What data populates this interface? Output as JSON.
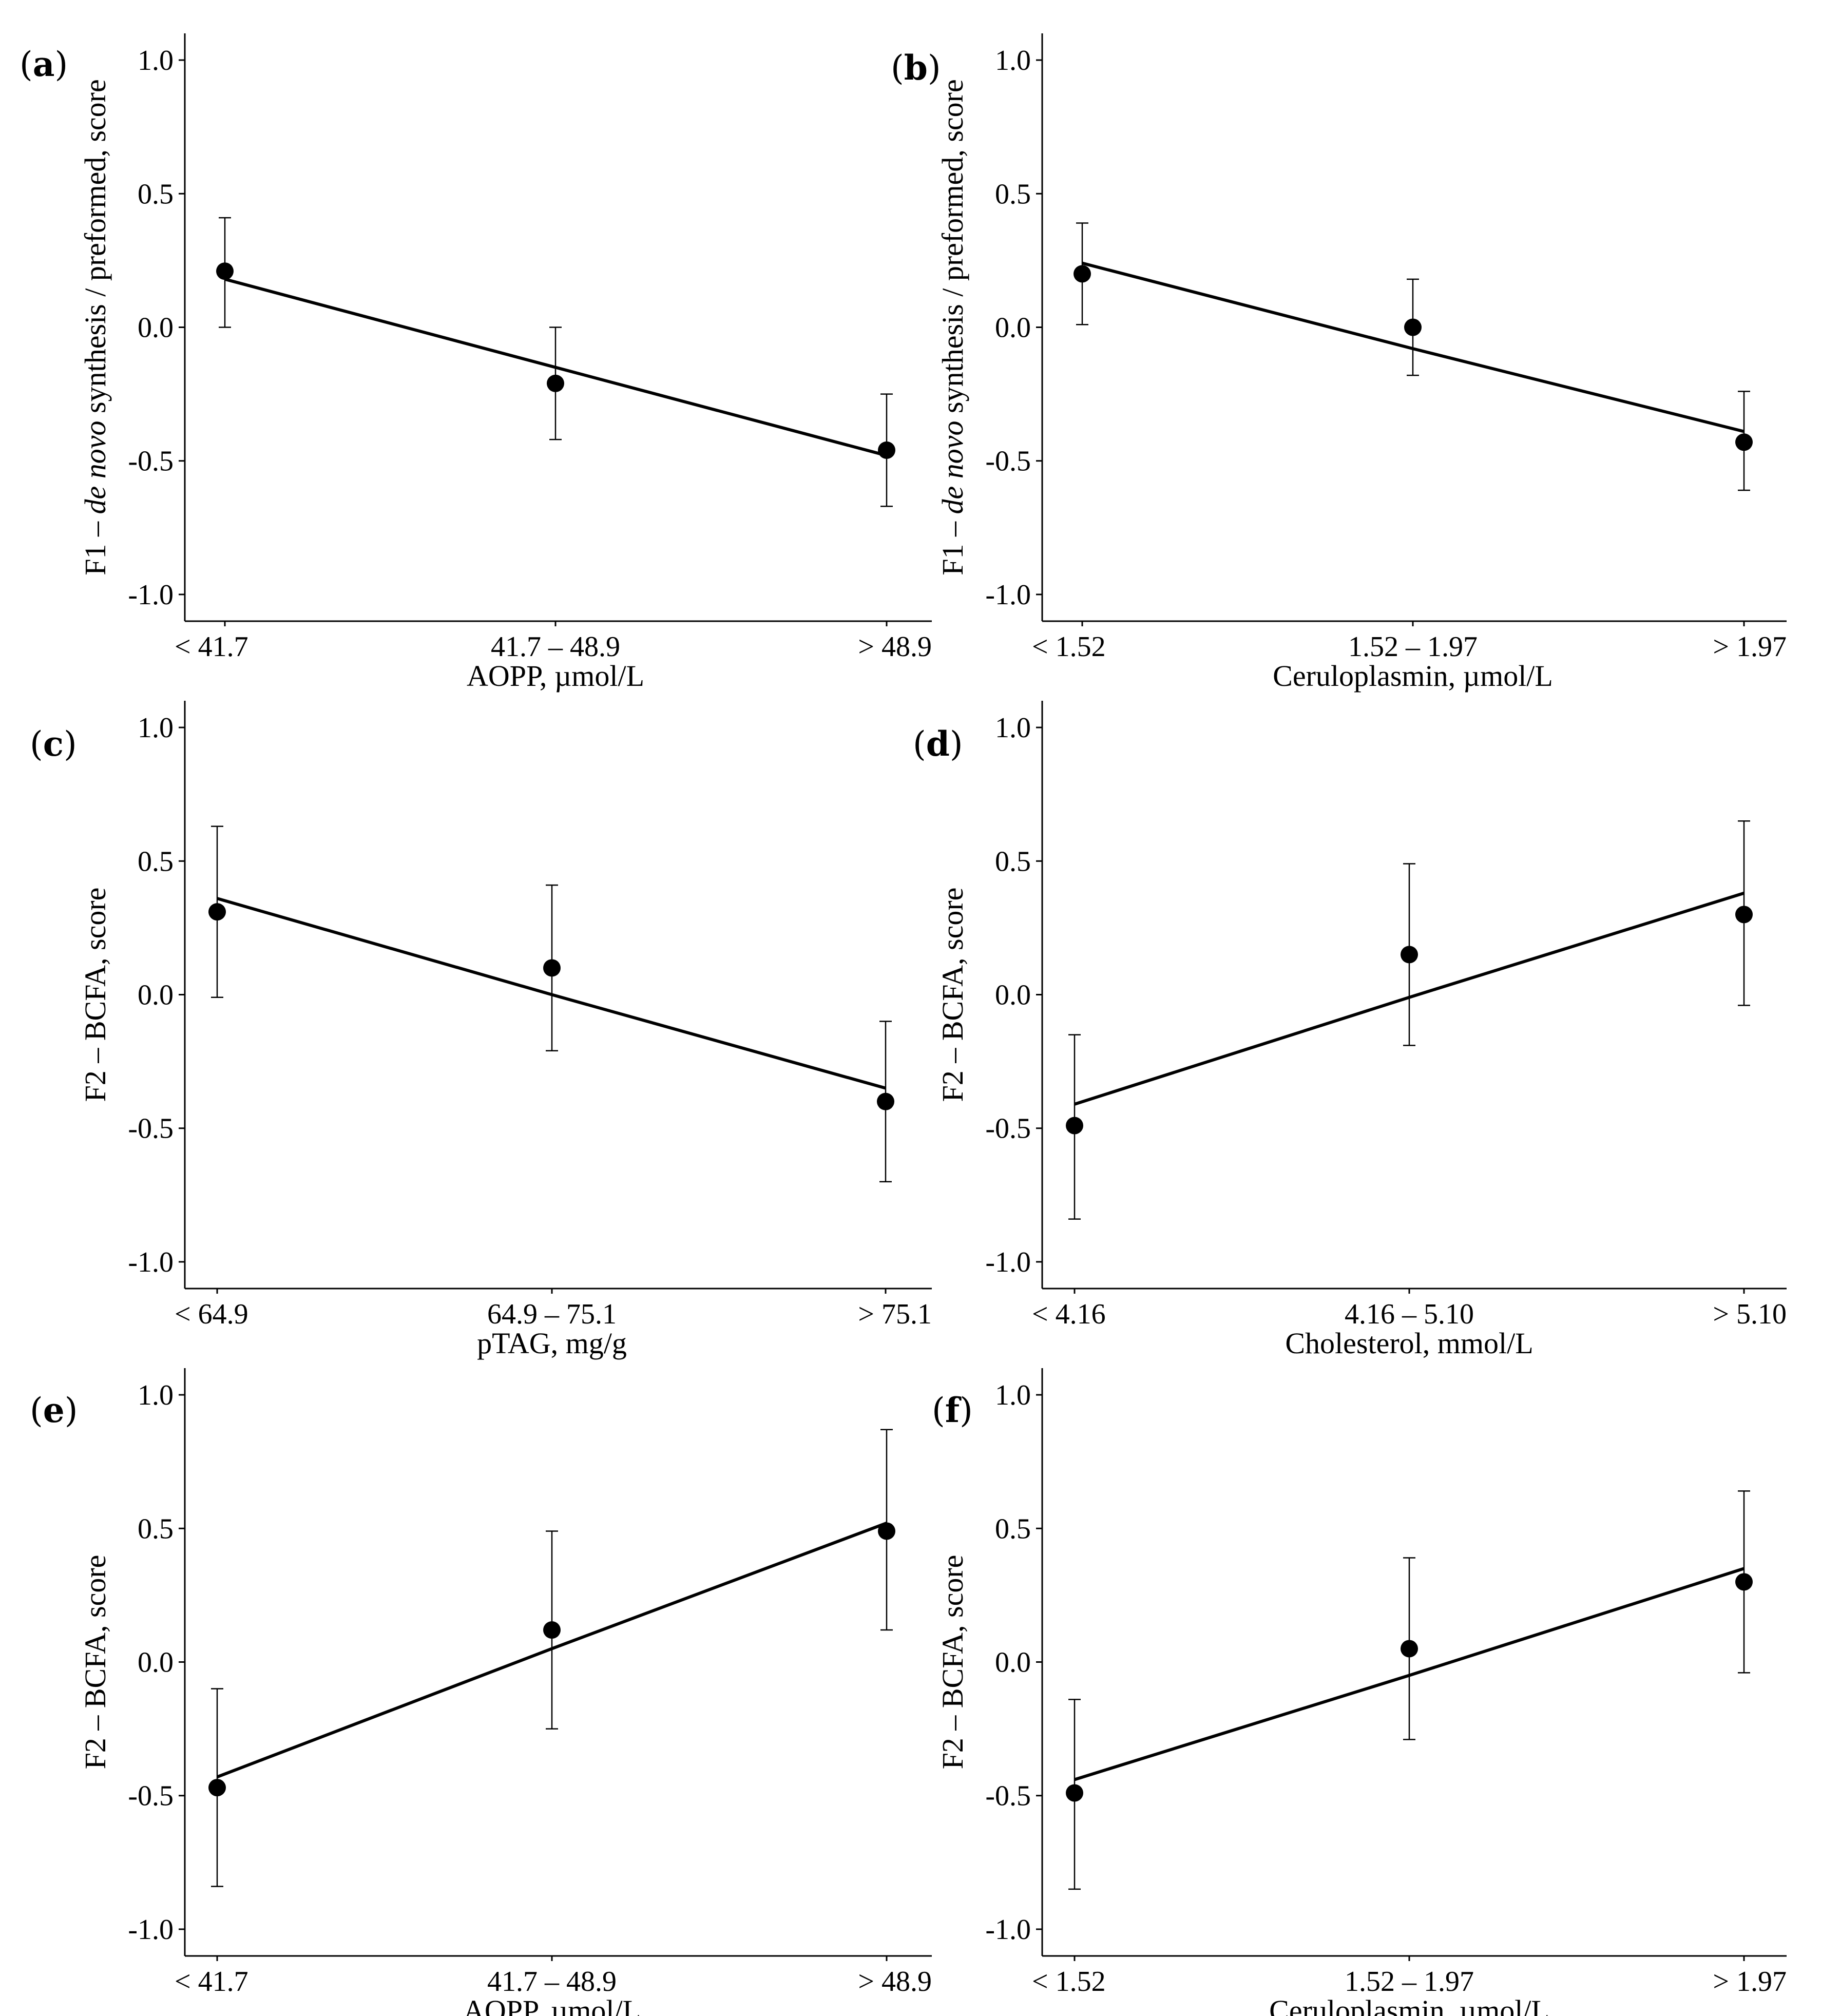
{
  "chart_data": [
    {
      "type": "scatter",
      "panel": "a",
      "panel_label_prefix": "(",
      "panel_label_letter": "a",
      "panel_label_suffix": ")",
      "categories": [
        "< 41.7",
        "41.7 – 48.9",
        "> 48.9"
      ],
      "values": [
        0.21,
        -0.21,
        -0.46
      ],
      "error_low": [
        0.0,
        -0.42,
        -0.67
      ],
      "error_high": [
        0.41,
        0.0,
        -0.25
      ],
      "fit": [
        0.18,
        -0.15,
        -0.48
      ],
      "xlabel": "AOPP,  µmol/L",
      "ylabel_parts": [
        "F1 – ",
        "de novo",
        " synthesis / preformed, score"
      ],
      "yticks": [
        -1.0,
        -0.5,
        0.0,
        0.5,
        1.0
      ],
      "ytick_labels": [
        "-1.0",
        "-0.5",
        "0.0",
        "0.5",
        "1.0"
      ],
      "ylim": [
        -1.1,
        1.1
      ]
    },
    {
      "type": "scatter",
      "panel": "b",
      "panel_label_prefix": "(",
      "panel_label_letter": "b",
      "panel_label_suffix": ")",
      "categories": [
        "< 1.52",
        "1.52 – 1.97",
        "> 1.97"
      ],
      "values": [
        0.2,
        0.0,
        -0.43
      ],
      "error_low": [
        0.01,
        -0.18,
        -0.61
      ],
      "error_high": [
        0.39,
        0.18,
        -0.24
      ],
      "fit": [
        0.24,
        -0.08,
        -0.39
      ],
      "xlabel": "Ceruloplasmin, µmol/L",
      "ylabel_parts": [
        "F1 – ",
        "de novo",
        " synthesis / preformed, score"
      ],
      "yticks": [
        -1.0,
        -0.5,
        0.0,
        0.5,
        1.0
      ],
      "ytick_labels": [
        "-1.0",
        "-0.5",
        "0.0",
        "0.5",
        "1.0"
      ],
      "ylim": [
        -1.1,
        1.1
      ]
    },
    {
      "type": "scatter",
      "panel": "c",
      "panel_label_prefix": "(",
      "panel_label_letter": "c",
      "panel_label_suffix": ")",
      "categories": [
        "< 64.9",
        "64.9 – 75.1",
        "> 75.1"
      ],
      "values": [
        0.31,
        0.1,
        -0.4
      ],
      "error_low": [
        -0.01,
        -0.21,
        -0.7
      ],
      "error_high": [
        0.63,
        0.41,
        -0.1
      ],
      "fit": [
        0.36,
        0.0,
        -0.35
      ],
      "xlabel": "pTAG, mg/g",
      "ylabel_parts": [
        "F2 – BCFA, score"
      ],
      "yticks": [
        -1.0,
        -0.5,
        0.0,
        0.5,
        1.0
      ],
      "ytick_labels": [
        "-1.0",
        "-0.5",
        "0.0",
        "0.5",
        "1.0"
      ],
      "ylim": [
        -1.1,
        1.1
      ]
    },
    {
      "type": "scatter",
      "panel": "d",
      "panel_label_prefix": "(",
      "panel_label_letter": "d",
      "panel_label_suffix": ")",
      "categories": [
        "< 4.16",
        "4.16 – 5.10",
        "> 5.10"
      ],
      "values": [
        -0.49,
        0.15,
        0.3
      ],
      "error_low": [
        -0.84,
        -0.19,
        -0.04
      ],
      "error_high": [
        -0.15,
        0.49,
        0.65
      ],
      "fit": [
        -0.41,
        -0.01,
        0.38
      ],
      "xlabel": "Cholesterol, mmol/L",
      "ylabel_parts": [
        "F2 – BCFA, score"
      ],
      "yticks": [
        -1.0,
        -0.5,
        0.0,
        0.5,
        1.0
      ],
      "ytick_labels": [
        "-1.0",
        "-0.5",
        "0.0",
        "0.5",
        "1.0"
      ],
      "ylim": [
        -1.1,
        1.1
      ]
    },
    {
      "type": "scatter",
      "panel": "e",
      "panel_label_prefix": "(",
      "panel_label_letter": "e",
      "panel_label_suffix": ")",
      "categories": [
        "< 41.7",
        "41.7 – 48.9",
        "> 48.9"
      ],
      "values": [
        -0.47,
        0.12,
        0.49
      ],
      "error_low": [
        -0.84,
        -0.25,
        0.12
      ],
      "error_high": [
        -0.1,
        0.49,
        0.87
      ],
      "fit": [
        -0.43,
        0.05,
        0.52
      ],
      "xlabel": "AOPP,  µmol/L",
      "ylabel_parts": [
        "F2 – BCFA, score"
      ],
      "yticks": [
        -1.0,
        -0.5,
        0.0,
        0.5,
        1.0
      ],
      "ytick_labels": [
        "-1.0",
        "-0.5",
        "0.0",
        "0.5",
        "1.0"
      ],
      "ylim": [
        -1.1,
        1.1
      ]
    },
    {
      "type": "scatter",
      "panel": "f",
      "panel_label_prefix": "(",
      "panel_label_letter": "f",
      "panel_label_suffix": ")",
      "categories": [
        "< 1.52",
        "1.52 – 1.97",
        "> 1.97"
      ],
      "values": [
        -0.49,
        0.05,
        0.3
      ],
      "error_low": [
        -0.85,
        -0.29,
        -0.04
      ],
      "error_high": [
        -0.14,
        0.39,
        0.64
      ],
      "fit": [
        -0.44,
        -0.05,
        0.35
      ],
      "xlabel": "Ceruloplasmin, µmol/L",
      "ylabel_parts": [
        "F2 – BCFA, score"
      ],
      "yticks": [
        -1.0,
        -0.5,
        0.0,
        0.5,
        1.0
      ],
      "ytick_labels": [
        "-1.0",
        "-0.5",
        "0.0",
        "0.5",
        "1.0"
      ],
      "ylim": [
        -1.1,
        1.1
      ]
    }
  ]
}
